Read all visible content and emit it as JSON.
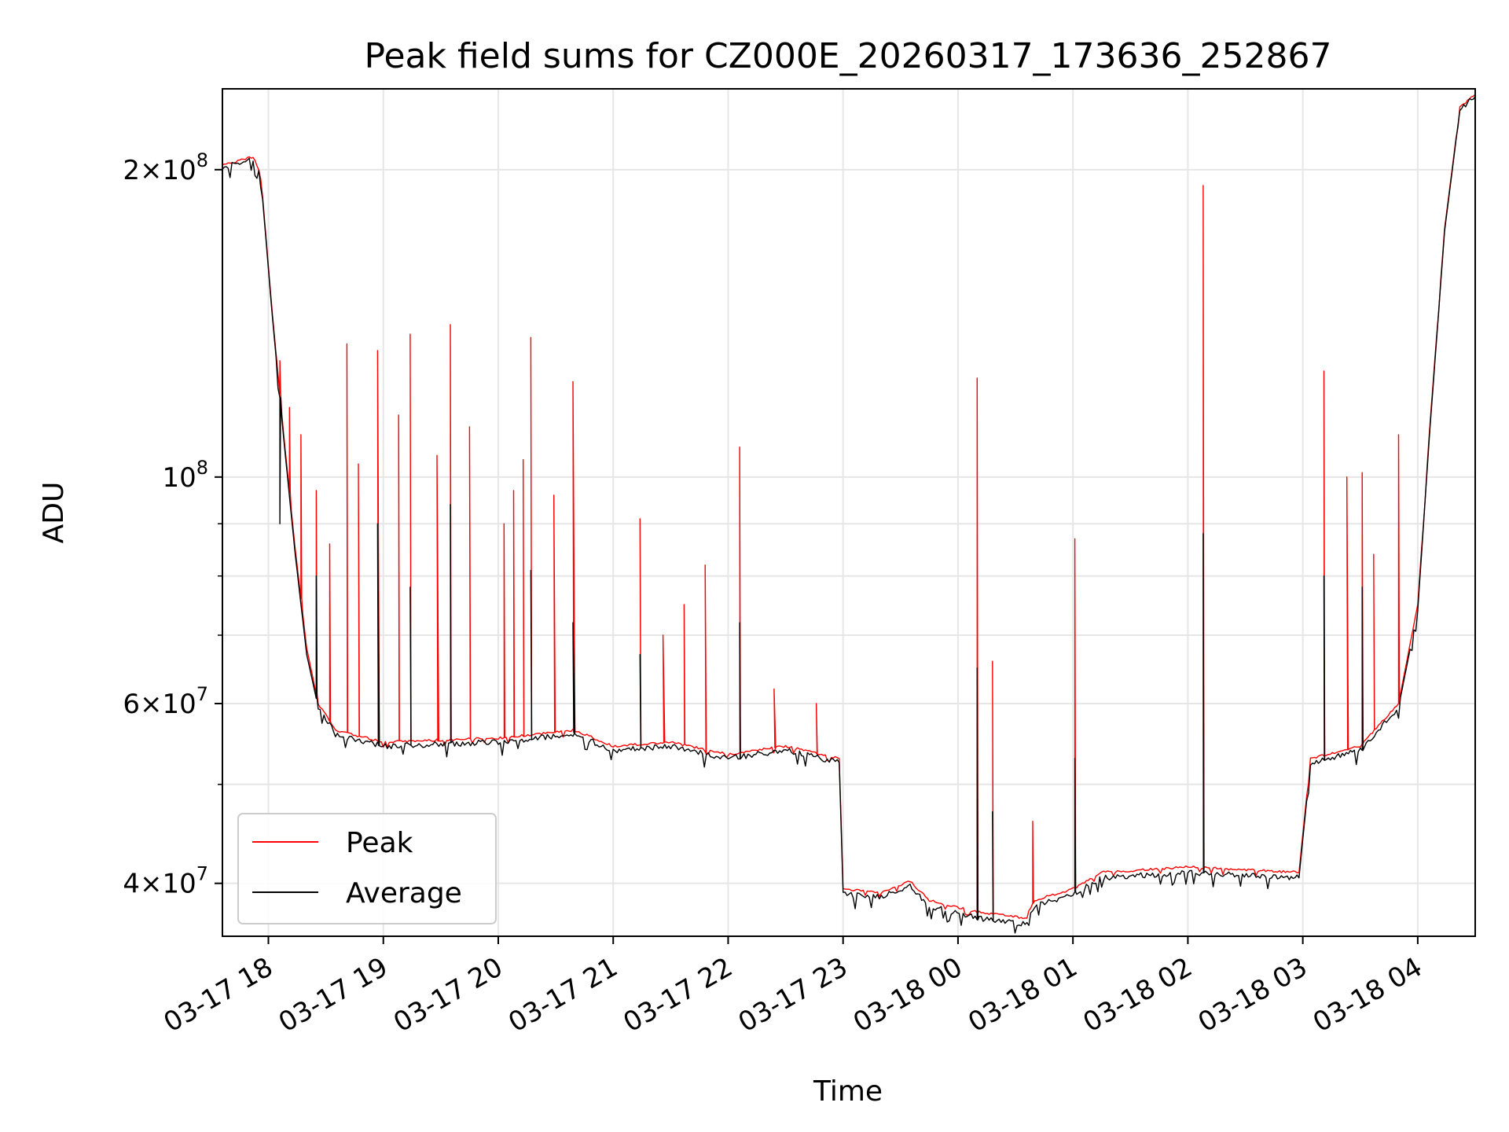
{
  "chart_data": {
    "type": "line",
    "title": "Peak field sums for CZ000E_20260317_173636_252867",
    "xlabel": "Time",
    "ylabel": "ADU",
    "y_scale": "log",
    "xlim": [
      "2026-03-17 17:36",
      "2026-03-18 04:30"
    ],
    "ylim": [
      35500000,
      240000000
    ],
    "grid": true,
    "legend_position": "lower-left",
    "x_ticks": [
      "03-17 18",
      "03-17 19",
      "03-17 20",
      "03-17 21",
      "03-17 22",
      "03-17 23",
      "03-18 00",
      "03-18 01",
      "03-18 02",
      "03-18 03",
      "03-18 04"
    ],
    "y_ticks": [
      {
        "value": 40000000,
        "base": "4",
        "exp": "7"
      },
      {
        "value": 60000000,
        "base": "6",
        "exp": "7"
      },
      {
        "value": 100000000,
        "base": "",
        "exp": "8"
      },
      {
        "value": 200000000,
        "base": "2",
        "exp": "8"
      }
    ],
    "series": [
      {
        "name": "Peak",
        "color": "#ff0000",
        "baseline": [
          [
            "2026-03-17 17:36",
            202000000
          ],
          [
            "2026-03-17 17:52",
            206000000
          ],
          [
            "2026-03-17 17:56",
            198000000
          ],
          [
            "2026-03-17 18:02",
            145000000
          ],
          [
            "2026-03-17 18:08",
            110000000
          ],
          [
            "2026-03-17 18:14",
            85000000
          ],
          [
            "2026-03-17 18:20",
            68000000
          ],
          [
            "2026-03-17 18:26",
            60000000
          ],
          [
            "2026-03-17 18:35",
            56500000
          ],
          [
            "2026-03-17 19:00",
            55000000
          ],
          [
            "2026-03-17 20:00",
            55500000
          ],
          [
            "2026-03-17 20:40",
            56500000
          ],
          [
            "2026-03-17 21:00",
            54500000
          ],
          [
            "2026-03-17 21:30",
            55000000
          ],
          [
            "2026-03-17 22:00",
            53500000
          ],
          [
            "2026-03-17 22:30",
            54500000
          ],
          [
            "2026-03-17 22:58",
            53000000
          ],
          [
            "2026-03-17 23:00",
            39500000
          ],
          [
            "2026-03-17 23:20",
            39200000
          ],
          [
            "2026-03-17 23:35",
            40200000
          ],
          [
            "2026-03-17 23:45",
            38500000
          ],
          [
            "2026-03-18 00:10",
            37500000
          ],
          [
            "2026-03-18 00:35",
            37000000
          ],
          [
            "2026-03-18 00:40",
            38500000
          ],
          [
            "2026-03-18 01:00",
            39500000
          ],
          [
            "2026-03-18 01:15",
            41000000
          ],
          [
            "2026-03-18 02:00",
            41500000
          ],
          [
            "2026-03-18 02:58",
            41000000
          ],
          [
            "2026-03-18 03:04",
            53000000
          ],
          [
            "2026-03-18 03:30",
            54500000
          ],
          [
            "2026-03-18 03:50",
            60000000
          ],
          [
            "2026-03-18 04:00",
            75000000
          ],
          [
            "2026-03-18 04:06",
            110000000
          ],
          [
            "2026-03-18 04:14",
            175000000
          ],
          [
            "2026-03-18 04:22",
            230000000
          ],
          [
            "2026-03-18 04:30",
            237000000
          ]
        ],
        "spikes": [
          [
            "2026-03-17 18:06",
            130000000
          ],
          [
            "2026-03-17 18:11",
            117000000
          ],
          [
            "2026-03-17 18:17",
            110000000
          ],
          [
            "2026-03-17 18:25",
            97000000
          ],
          [
            "2026-03-17 18:32",
            86000000
          ],
          [
            "2026-03-17 18:41",
            135000000
          ],
          [
            "2026-03-17 18:47",
            103000000
          ],
          [
            "2026-03-17 18:57",
            133000000
          ],
          [
            "2026-03-17 19:08",
            115000000
          ],
          [
            "2026-03-17 19:14",
            138000000
          ],
          [
            "2026-03-17 19:28",
            105000000
          ],
          [
            "2026-03-17 19:35",
            141000000
          ],
          [
            "2026-03-17 19:45",
            112000000
          ],
          [
            "2026-03-17 20:03",
            90000000
          ],
          [
            "2026-03-17 20:08",
            97000000
          ],
          [
            "2026-03-17 20:13",
            104000000
          ],
          [
            "2026-03-17 20:17",
            137000000
          ],
          [
            "2026-03-17 20:29",
            96000000
          ],
          [
            "2026-03-17 20:39",
            124000000
          ],
          [
            "2026-03-17 21:14",
            91000000
          ],
          [
            "2026-03-17 21:26",
            70000000
          ],
          [
            "2026-03-17 21:37",
            75000000
          ],
          [
            "2026-03-17 21:48",
            82000000
          ],
          [
            "2026-03-17 22:06",
            107000000
          ],
          [
            "2026-03-17 22:24",
            62000000
          ],
          [
            "2026-03-17 22:46",
            60000000
          ],
          [
            "2026-03-18 00:10",
            125000000
          ],
          [
            "2026-03-18 00:18",
            66000000
          ],
          [
            "2026-03-18 00:39",
            46000000
          ],
          [
            "2026-03-18 01:01",
            87000000
          ],
          [
            "2026-03-18 02:08",
            193000000
          ],
          [
            "2026-03-18 03:11",
            127000000
          ],
          [
            "2026-03-18 03:23",
            100000000
          ],
          [
            "2026-03-18 03:31",
            101000000
          ],
          [
            "2026-03-18 03:37",
            84000000
          ],
          [
            "2026-03-18 03:50",
            110000000
          ]
        ]
      },
      {
        "name": "Average",
        "color": "#000000",
        "baseline": [
          [
            "2026-03-17 17:36",
            201000000
          ],
          [
            "2026-03-17 17:52",
            205000000
          ],
          [
            "2026-03-17 17:56",
            197000000
          ],
          [
            "2026-03-17 18:02",
            144000000
          ],
          [
            "2026-03-17 18:08",
            109000000
          ],
          [
            "2026-03-17 18:14",
            84000000
          ],
          [
            "2026-03-17 18:20",
            67000000
          ],
          [
            "2026-03-17 18:26",
            59500000
          ],
          [
            "2026-03-17 18:35",
            56000000
          ],
          [
            "2026-03-17 19:00",
            54500000
          ],
          [
            "2026-03-17 20:00",
            55000000
          ],
          [
            "2026-03-17 20:40",
            56000000
          ],
          [
            "2026-03-17 21:00",
            54000000
          ],
          [
            "2026-03-17 21:30",
            54500000
          ],
          [
            "2026-03-17 22:00",
            53000000
          ],
          [
            "2026-03-17 22:30",
            54000000
          ],
          [
            "2026-03-17 22:58",
            52500000
          ],
          [
            "2026-03-17 23:00",
            39000000
          ],
          [
            "2026-03-17 23:20",
            38800000
          ],
          [
            "2026-03-17 23:35",
            39800000
          ],
          [
            "2026-03-17 23:45",
            38000000
          ],
          [
            "2026-03-18 00:10",
            37000000
          ],
          [
            "2026-03-18 00:35",
            36500000
          ],
          [
            "2026-03-18 00:40",
            38000000
          ],
          [
            "2026-03-18 01:00",
            39000000
          ],
          [
            "2026-03-18 01:15",
            40500000
          ],
          [
            "2026-03-18 02:00",
            41000000
          ],
          [
            "2026-03-18 02:58",
            40500000
          ],
          [
            "2026-03-18 03:04",
            52500000
          ],
          [
            "2026-03-18 03:30",
            54000000
          ],
          [
            "2026-03-18 03:50",
            59500000
          ],
          [
            "2026-03-18 04:00",
            74000000
          ],
          [
            "2026-03-18 04:06",
            109000000
          ],
          [
            "2026-03-18 04:14",
            174000000
          ],
          [
            "2026-03-18 04:22",
            229000000
          ],
          [
            "2026-03-18 04:30",
            236000000
          ]
        ],
        "spikes": [
          [
            "2026-03-17 18:06",
            90000000
          ],
          [
            "2026-03-17 18:25",
            80000000
          ],
          [
            "2026-03-17 18:57",
            90000000
          ],
          [
            "2026-03-17 19:14",
            78000000
          ],
          [
            "2026-03-17 19:35",
            94000000
          ],
          [
            "2026-03-17 20:17",
            81000000
          ],
          [
            "2026-03-17 20:39",
            72000000
          ],
          [
            "2026-03-17 21:14",
            67000000
          ],
          [
            "2026-03-17 22:06",
            72000000
          ],
          [
            "2026-03-18 00:10",
            65000000
          ],
          [
            "2026-03-18 00:18",
            47000000
          ],
          [
            "2026-03-18 01:01",
            53000000
          ],
          [
            "2026-03-18 02:08",
            88000000
          ],
          [
            "2026-03-18 03:11",
            80000000
          ],
          [
            "2026-03-18 03:31",
            78000000
          ]
        ]
      }
    ]
  }
}
